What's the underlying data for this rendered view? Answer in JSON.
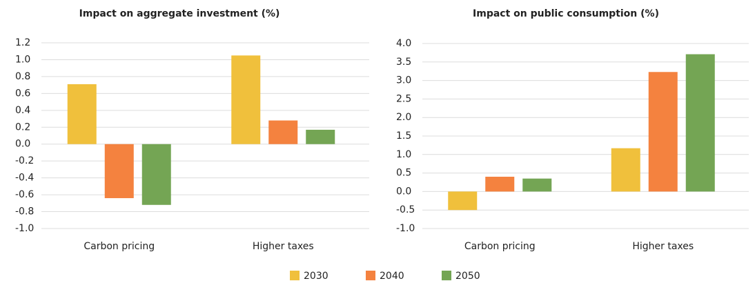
{
  "chart_data": [
    {
      "type": "bar",
      "title": "Impact on aggregate investment (%)",
      "categories": [
        "Carbon pricing",
        "Higher taxes"
      ],
      "series": [
        {
          "name": "2030",
          "color": "#f0c03c",
          "values": [
            0.71,
            1.05
          ]
        },
        {
          "name": "2040",
          "color": "#f4823f",
          "values": [
            -0.64,
            0.28
          ]
        },
        {
          "name": "2050",
          "color": "#74a554",
          "values": [
            -0.72,
            0.17
          ]
        }
      ],
      "ylim": [
        -1.0,
        1.2
      ],
      "yticks": [
        {
          "value": -1.0,
          "label": "-1.0"
        },
        -0.8,
        -0.6,
        -0.4,
        -0.2,
        {
          "value": 0,
          "label": "0.0"
        },
        0.2,
        0.4,
        0.6,
        0.8,
        {
          "value": 1.0,
          "label": "1.0"
        },
        1.2
      ],
      "grid": true
    },
    {
      "type": "bar",
      "title": "Impact on public consumption (%)",
      "categories": [
        "Carbon pricing",
        "Higher taxes"
      ],
      "series": [
        {
          "name": "2030",
          "color": "#f0c03c",
          "values": [
            -0.5,
            1.17
          ]
        },
        {
          "name": "2040",
          "color": "#f4823f",
          "values": [
            0.4,
            3.23
          ]
        },
        {
          "name": "2050",
          "color": "#74a554",
          "values": [
            0.35,
            3.71
          ]
        }
      ],
      "ylim": [
        -1.0,
        4.0
      ],
      "yticks": [
        {
          "value": -1.0,
          "label": "-1.0"
        },
        -0.5,
        {
          "value": 0,
          "label": "0.0"
        },
        0.5,
        {
          "value": 1.0,
          "label": "1.0"
        },
        1.5,
        {
          "value": 2.0,
          "label": "2.0"
        },
        2.5,
        {
          "value": 3.0,
          "label": "3.0"
        },
        3.5,
        {
          "value": 4.0,
          "label": "4.0"
        }
      ],
      "grid": true
    }
  ]
}
